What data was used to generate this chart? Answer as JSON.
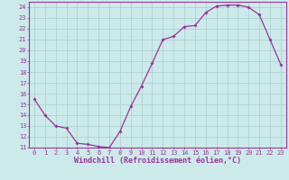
{
  "x": [
    0,
    1,
    2,
    3,
    4,
    5,
    6,
    7,
    8,
    9,
    10,
    11,
    12,
    13,
    14,
    15,
    16,
    17,
    18,
    19,
    20,
    21,
    22,
    23
  ],
  "y": [
    15.5,
    14.0,
    13.0,
    12.8,
    11.4,
    11.3,
    11.1,
    11.0,
    12.5,
    14.8,
    16.7,
    18.8,
    21.0,
    21.3,
    22.2,
    22.3,
    23.5,
    24.1,
    24.2,
    24.2,
    24.0,
    23.3,
    21.0,
    18.7
  ],
  "line_color": "#993399",
  "marker": "D",
  "marker_size": 1.8,
  "bg_color": "#cceaea",
  "grid_color": "#aacccc",
  "xlabel": "Windchill (Refroidissement éolien,°C)",
  "xlabel_color": "#993399",
  "tick_color": "#993399",
  "ylim": [
    11,
    24.5
  ],
  "xlim": [
    -0.5,
    23.5
  ],
  "yticks": [
    11,
    12,
    13,
    14,
    15,
    16,
    17,
    18,
    19,
    20,
    21,
    22,
    23,
    24
  ],
  "xticks": [
    0,
    1,
    2,
    3,
    4,
    5,
    6,
    7,
    8,
    9,
    10,
    11,
    12,
    13,
    14,
    15,
    16,
    17,
    18,
    19,
    20,
    21,
    22,
    23
  ],
  "tick_fontsize": 5.0,
  "xlabel_fontsize": 6.0,
  "spine_color": "#993399",
  "linewidth": 0.9
}
